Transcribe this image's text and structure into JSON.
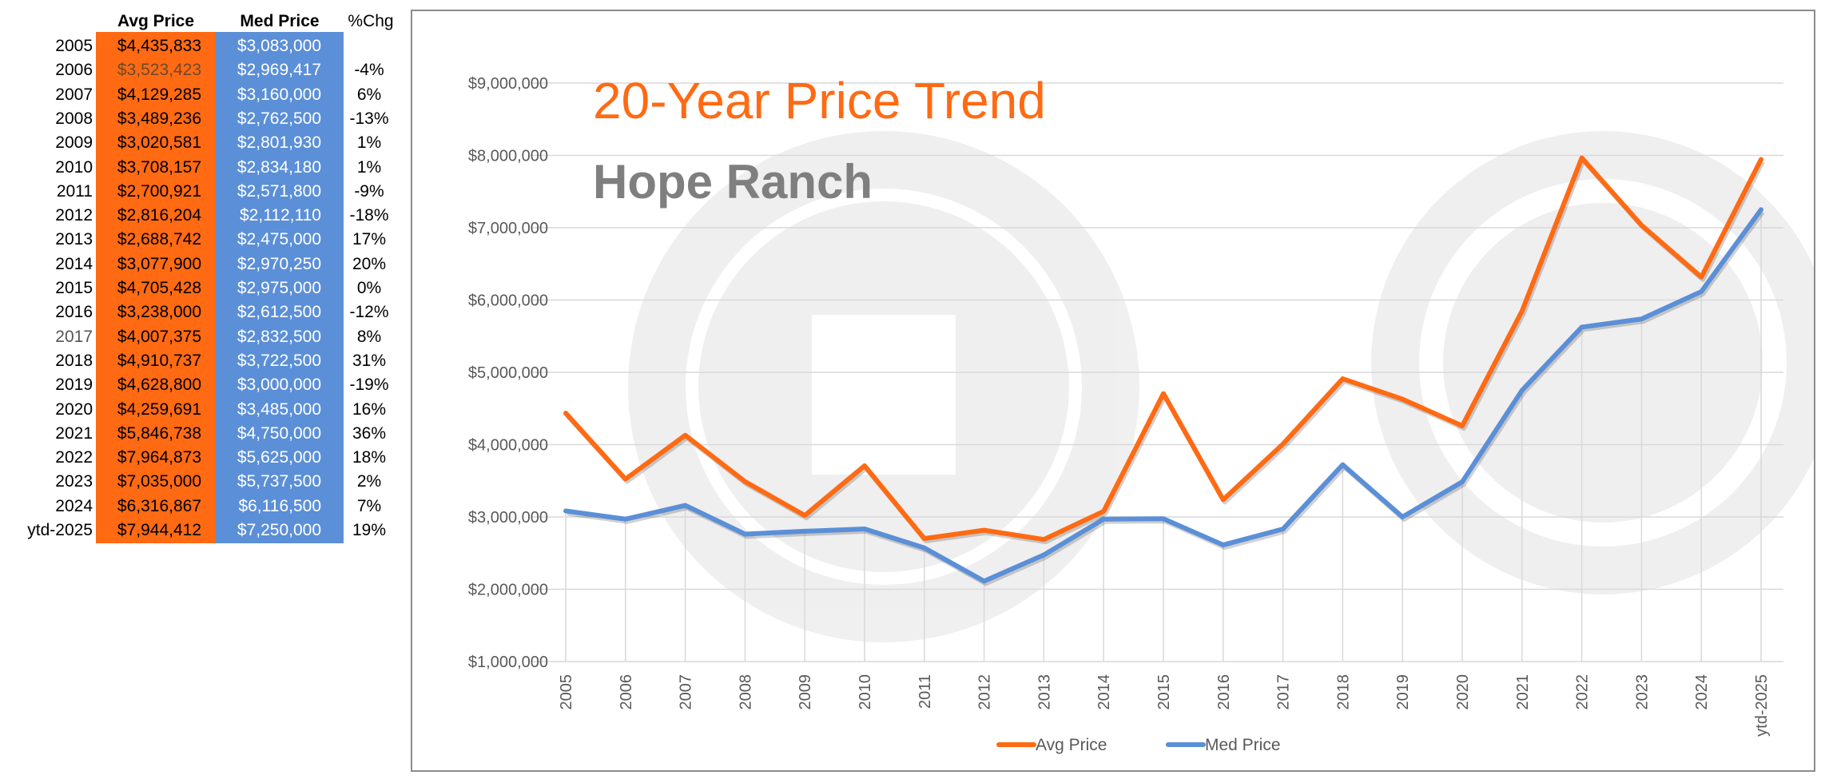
{
  "table": {
    "headers": {
      "avg": "Avg Price",
      "med": "Med Price",
      "chg": "%Chg"
    },
    "rows": [
      {
        "year": "2005",
        "avg": "$4,435,833",
        "med": "$3,083,000",
        "chg": ""
      },
      {
        "year": "2006",
        "avg": "$3,523,423",
        "med": "$2,969,417",
        "chg": "-4%"
      },
      {
        "year": "2007",
        "avg": "$4,129,285",
        "med": "$3,160,000",
        "chg": "6%"
      },
      {
        "year": "2008",
        "avg": "$3,489,236",
        "med": "$2,762,500",
        "chg": "-13%"
      },
      {
        "year": "2009",
        "avg": "$3,020,581",
        "med": "$2,801,930",
        "chg": "1%"
      },
      {
        "year": "2010",
        "avg": "$3,708,157",
        "med": "$2,834,180",
        "chg": "1%"
      },
      {
        "year": "2011",
        "avg": "$2,700,921",
        "med": "$2,571,800",
        "chg": "-9%"
      },
      {
        "year": "2012",
        "avg": "$2,816,204",
        "med": "$2,112,110",
        "chg": "-18%"
      },
      {
        "year": "2013",
        "avg": "$2,688,742",
        "med": "$2,475,000",
        "chg": "17%"
      },
      {
        "year": "2014",
        "avg": "$3,077,900",
        "med": "$2,970,250",
        "chg": "20%"
      },
      {
        "year": "2015",
        "avg": "$4,705,428",
        "med": "$2,975,000",
        "chg": "0%"
      },
      {
        "year": "2016",
        "avg": "$3,238,000",
        "med": "$2,612,500",
        "chg": "-12%"
      },
      {
        "year": "2017",
        "avg": "$4,007,375",
        "med": "$2,832,500",
        "chg": "8%"
      },
      {
        "year": "2018",
        "avg": "$4,910,737",
        "med": "$3,722,500",
        "chg": "31%"
      },
      {
        "year": "2019",
        "avg": "$4,628,800",
        "med": "$3,000,000",
        "chg": "-19%"
      },
      {
        "year": "2020",
        "avg": "$4,259,691",
        "med": "$3,485,000",
        "chg": "16%"
      },
      {
        "year": "2021",
        "avg": "$5,846,738",
        "med": "$4,750,000",
        "chg": "36%"
      },
      {
        "year": "2022",
        "avg": "$7,964,873",
        "med": "$5,625,000",
        "chg": "18%"
      },
      {
        "year": "2023",
        "avg": "$7,035,000",
        "med": "$5,737,500",
        "chg": "2%"
      },
      {
        "year": "2024",
        "avg": "$6,316,867",
        "med": "$6,116,500",
        "chg": "7%"
      },
      {
        "year": "ytd-2025",
        "avg": "$7,944,412",
        "med": "$7,250,000",
        "chg": "19%"
      }
    ]
  },
  "colors": {
    "avg": "#ff6a13",
    "med": "#5b8fd7",
    "title_secondary": "#7f7f7f",
    "grid": "#d9d9d9"
  },
  "chart_data": {
    "type": "line",
    "title": "20-Year Price Trend",
    "subtitle": "Hope Ranch",
    "xlabel": "",
    "ylabel": "",
    "categories": [
      "2005",
      "2006",
      "2007",
      "2008",
      "2009",
      "2010",
      "2011",
      "2012",
      "2013",
      "2014",
      "2015",
      "2016",
      "2017",
      "2018",
      "2019",
      "2020",
      "2021",
      "2022",
      "2023",
      "2024",
      "ytd-2025"
    ],
    "series": [
      {
        "name": "Avg Price",
        "color": "#ff6a13",
        "values": [
          4435833,
          3523423,
          4129285,
          3489236,
          3020581,
          3708157,
          2700921,
          2816204,
          2688742,
          3077900,
          4705428,
          3238000,
          4007375,
          4910737,
          4628800,
          4259691,
          5846738,
          7964873,
          7035000,
          6316867,
          7944412
        ]
      },
      {
        "name": "Med Price",
        "color": "#5b8fd7",
        "values": [
          3083000,
          2969417,
          3160000,
          2762500,
          2801930,
          2834180,
          2571800,
          2112110,
          2475000,
          2970250,
          2975000,
          2612500,
          2832500,
          3722500,
          3000000,
          3485000,
          4750000,
          5625000,
          5737500,
          6116500,
          7250000
        ]
      }
    ],
    "ylim": [
      1000000,
      9000000
    ],
    "yticks": [
      "$1,000,000",
      "$2,000,000",
      "$3,000,000",
      "$4,000,000",
      "$5,000,000",
      "$6,000,000",
      "$7,000,000",
      "$8,000,000",
      "$9,000,000"
    ],
    "grid": true,
    "legend": "bottom"
  }
}
